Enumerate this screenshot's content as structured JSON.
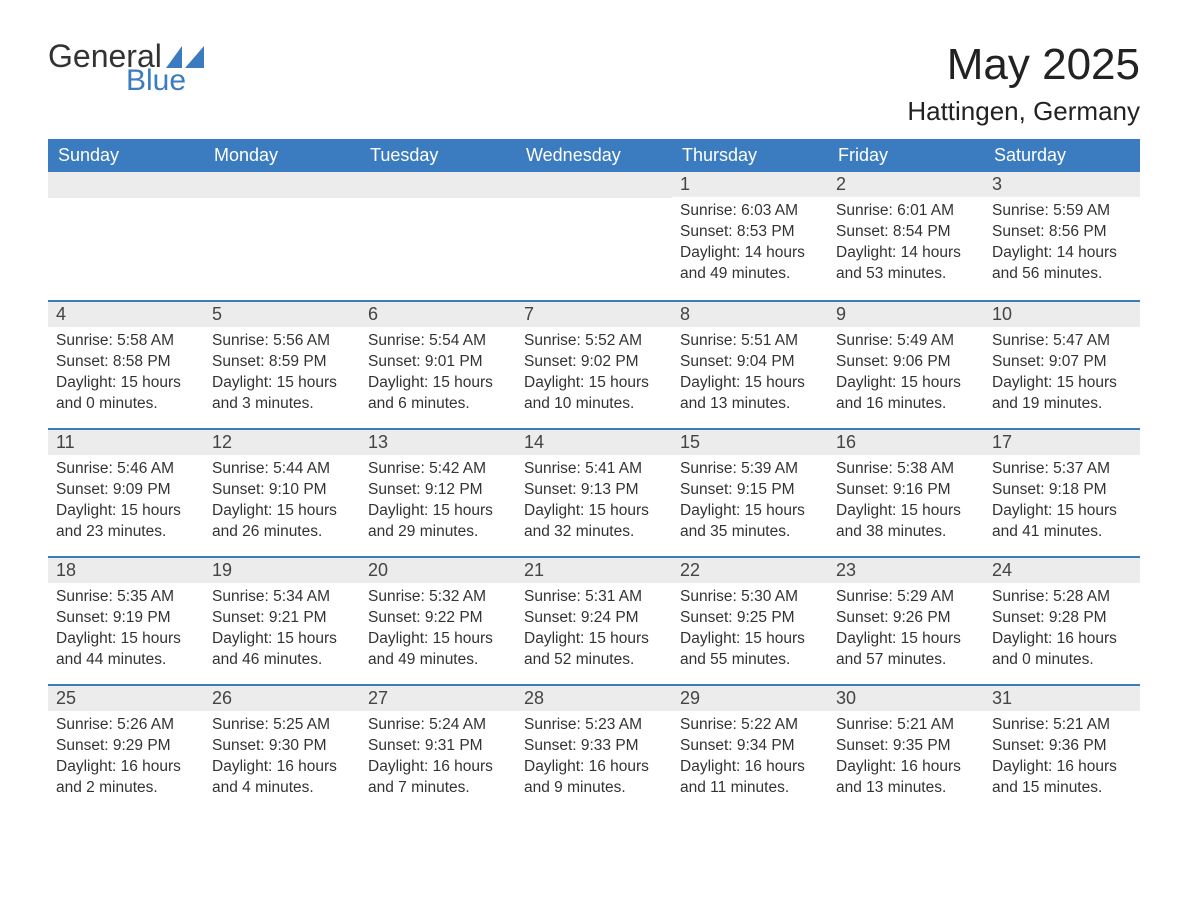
{
  "logo": {
    "word1": "General",
    "word2": "Blue",
    "shape_color": "#3b7bbf"
  },
  "title": "May 2025",
  "location": "Hattingen, Germany",
  "header_bg": "#3b7bbf",
  "header_text": "#ffffff",
  "daynum_bg": "#ececec",
  "border_color": "#3b7bbf",
  "weekdays": [
    "Sunday",
    "Monday",
    "Tuesday",
    "Wednesday",
    "Thursday",
    "Friday",
    "Saturday"
  ],
  "weeks": [
    [
      null,
      null,
      null,
      null,
      {
        "n": "1",
        "sunrise": "6:03 AM",
        "sunset": "8:53 PM",
        "daylight": "14 hours and 49 minutes."
      },
      {
        "n": "2",
        "sunrise": "6:01 AM",
        "sunset": "8:54 PM",
        "daylight": "14 hours and 53 minutes."
      },
      {
        "n": "3",
        "sunrise": "5:59 AM",
        "sunset": "8:56 PM",
        "daylight": "14 hours and 56 minutes."
      }
    ],
    [
      {
        "n": "4",
        "sunrise": "5:58 AM",
        "sunset": "8:58 PM",
        "daylight": "15 hours and 0 minutes."
      },
      {
        "n": "5",
        "sunrise": "5:56 AM",
        "sunset": "8:59 PM",
        "daylight": "15 hours and 3 minutes."
      },
      {
        "n": "6",
        "sunrise": "5:54 AM",
        "sunset": "9:01 PM",
        "daylight": "15 hours and 6 minutes."
      },
      {
        "n": "7",
        "sunrise": "5:52 AM",
        "sunset": "9:02 PM",
        "daylight": "15 hours and 10 minutes."
      },
      {
        "n": "8",
        "sunrise": "5:51 AM",
        "sunset": "9:04 PM",
        "daylight": "15 hours and 13 minutes."
      },
      {
        "n": "9",
        "sunrise": "5:49 AM",
        "sunset": "9:06 PM",
        "daylight": "15 hours and 16 minutes."
      },
      {
        "n": "10",
        "sunrise": "5:47 AM",
        "sunset": "9:07 PM",
        "daylight": "15 hours and 19 minutes."
      }
    ],
    [
      {
        "n": "11",
        "sunrise": "5:46 AM",
        "sunset": "9:09 PM",
        "daylight": "15 hours and 23 minutes."
      },
      {
        "n": "12",
        "sunrise": "5:44 AM",
        "sunset": "9:10 PM",
        "daylight": "15 hours and 26 minutes."
      },
      {
        "n": "13",
        "sunrise": "5:42 AM",
        "sunset": "9:12 PM",
        "daylight": "15 hours and 29 minutes."
      },
      {
        "n": "14",
        "sunrise": "5:41 AM",
        "sunset": "9:13 PM",
        "daylight": "15 hours and 32 minutes."
      },
      {
        "n": "15",
        "sunrise": "5:39 AM",
        "sunset": "9:15 PM",
        "daylight": "15 hours and 35 minutes."
      },
      {
        "n": "16",
        "sunrise": "5:38 AM",
        "sunset": "9:16 PM",
        "daylight": "15 hours and 38 minutes."
      },
      {
        "n": "17",
        "sunrise": "5:37 AM",
        "sunset": "9:18 PM",
        "daylight": "15 hours and 41 minutes."
      }
    ],
    [
      {
        "n": "18",
        "sunrise": "5:35 AM",
        "sunset": "9:19 PM",
        "daylight": "15 hours and 44 minutes."
      },
      {
        "n": "19",
        "sunrise": "5:34 AM",
        "sunset": "9:21 PM",
        "daylight": "15 hours and 46 minutes."
      },
      {
        "n": "20",
        "sunrise": "5:32 AM",
        "sunset": "9:22 PM",
        "daylight": "15 hours and 49 minutes."
      },
      {
        "n": "21",
        "sunrise": "5:31 AM",
        "sunset": "9:24 PM",
        "daylight": "15 hours and 52 minutes."
      },
      {
        "n": "22",
        "sunrise": "5:30 AM",
        "sunset": "9:25 PM",
        "daylight": "15 hours and 55 minutes."
      },
      {
        "n": "23",
        "sunrise": "5:29 AM",
        "sunset": "9:26 PM",
        "daylight": "15 hours and 57 minutes."
      },
      {
        "n": "24",
        "sunrise": "5:28 AM",
        "sunset": "9:28 PM",
        "daylight": "16 hours and 0 minutes."
      }
    ],
    [
      {
        "n": "25",
        "sunrise": "5:26 AM",
        "sunset": "9:29 PM",
        "daylight": "16 hours and 2 minutes."
      },
      {
        "n": "26",
        "sunrise": "5:25 AM",
        "sunset": "9:30 PM",
        "daylight": "16 hours and 4 minutes."
      },
      {
        "n": "27",
        "sunrise": "5:24 AM",
        "sunset": "9:31 PM",
        "daylight": "16 hours and 7 minutes."
      },
      {
        "n": "28",
        "sunrise": "5:23 AM",
        "sunset": "9:33 PM",
        "daylight": "16 hours and 9 minutes."
      },
      {
        "n": "29",
        "sunrise": "5:22 AM",
        "sunset": "9:34 PM",
        "daylight": "16 hours and 11 minutes."
      },
      {
        "n": "30",
        "sunrise": "5:21 AM",
        "sunset": "9:35 PM",
        "daylight": "16 hours and 13 minutes."
      },
      {
        "n": "31",
        "sunrise": "5:21 AM",
        "sunset": "9:36 PM",
        "daylight": "16 hours and 15 minutes."
      }
    ]
  ],
  "labels": {
    "sunrise": "Sunrise:",
    "sunset": "Sunset:",
    "daylight": "Daylight:"
  }
}
